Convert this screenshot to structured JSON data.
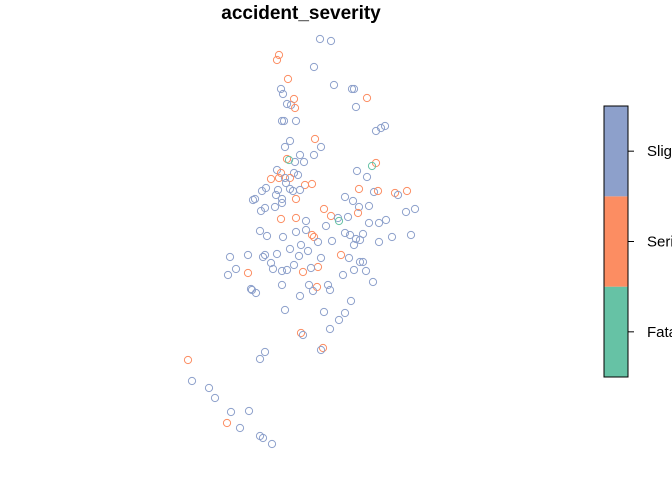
{
  "chart_data": {
    "type": "scatter",
    "title": "accident_severity",
    "legend": {
      "placement": "right",
      "categories": [
        {
          "label": "Fatal",
          "color": "#66C2A5"
        },
        {
          "label": "Serious",
          "color": "#FC8D62"
        },
        {
          "label": "Slight",
          "color": "#8DA0CB"
        }
      ]
    },
    "points": [
      [
        320,
        39,
        2
      ],
      [
        331,
        41,
        2
      ],
      [
        279,
        55,
        1
      ],
      [
        277,
        60,
        1
      ],
      [
        314,
        67,
        2
      ],
      [
        288,
        79,
        1
      ],
      [
        334,
        85,
        2
      ],
      [
        281,
        89,
        2
      ],
      [
        283,
        94,
        2
      ],
      [
        352,
        89,
        2
      ],
      [
        354,
        89,
        2
      ],
      [
        367,
        98,
        1
      ],
      [
        356,
        107,
        2
      ],
      [
        287,
        104,
        2
      ],
      [
        291,
        105,
        2
      ],
      [
        294,
        99,
        1
      ],
      [
        295,
        108,
        1
      ],
      [
        282,
        121,
        2
      ],
      [
        284,
        121,
        2
      ],
      [
        296,
        121,
        2
      ],
      [
        385,
        126,
        2
      ],
      [
        381,
        128,
        2
      ],
      [
        376,
        131,
        2
      ],
      [
        315,
        139,
        1
      ],
      [
        290,
        141,
        2
      ],
      [
        285,
        147,
        2
      ],
      [
        321,
        147,
        2
      ],
      [
        300,
        155,
        2
      ],
      [
        287,
        159,
        1
      ],
      [
        295,
        162,
        2
      ],
      [
        314,
        155,
        2
      ],
      [
        304,
        162,
        2
      ],
      [
        376,
        163,
        1
      ],
      [
        372,
        166,
        0
      ],
      [
        289,
        160,
        0
      ],
      [
        277,
        170,
        2
      ],
      [
        281,
        173,
        1
      ],
      [
        294,
        173,
        2
      ],
      [
        357,
        171,
        2
      ],
      [
        367,
        177,
        2
      ],
      [
        271,
        179,
        1
      ],
      [
        279,
        178,
        1
      ],
      [
        290,
        178,
        1
      ],
      [
        298,
        175,
        2
      ],
      [
        285,
        178,
        2
      ],
      [
        286,
        183,
        2
      ],
      [
        305,
        185,
        1
      ],
      [
        300,
        190,
        2
      ],
      [
        312,
        184,
        1
      ],
      [
        290,
        189,
        2
      ],
      [
        293,
        191,
        2
      ],
      [
        266,
        188,
        2
      ],
      [
        278,
        190,
        2
      ],
      [
        262,
        191,
        2
      ],
      [
        359,
        189,
        1
      ],
      [
        374,
        192,
        2
      ],
      [
        378,
        191,
        1
      ],
      [
        395,
        193,
        1
      ],
      [
        398,
        195,
        2
      ],
      [
        407,
        191,
        1
      ],
      [
        253,
        200,
        2
      ],
      [
        255,
        199,
        2
      ],
      [
        276,
        195,
        2
      ],
      [
        282,
        199,
        2
      ],
      [
        275,
        207,
        2
      ],
      [
        265,
        208,
        2
      ],
      [
        261,
        211,
        2
      ],
      [
        282,
        203,
        2
      ],
      [
        296,
        199,
        1
      ],
      [
        345,
        197,
        2
      ],
      [
        359,
        207,
        2
      ],
      [
        369,
        206,
        2
      ],
      [
        353,
        201,
        2
      ],
      [
        415,
        209,
        2
      ],
      [
        406,
        212,
        2
      ],
      [
        386,
        220,
        2
      ],
      [
        379,
        223,
        2
      ],
      [
        369,
        223,
        2
      ],
      [
        324,
        209,
        1
      ],
      [
        331,
        216,
        1
      ],
      [
        338,
        218,
        2
      ],
      [
        339,
        221,
        0
      ],
      [
        326,
        226,
        2
      ],
      [
        348,
        217,
        2
      ],
      [
        358,
        213,
        1
      ],
      [
        281,
        219,
        1
      ],
      [
        296,
        218,
        1
      ],
      [
        306,
        221,
        2
      ],
      [
        306,
        230,
        2
      ],
      [
        312,
        235,
        1
      ],
      [
        314,
        237,
        1
      ],
      [
        318,
        242,
        2
      ],
      [
        296,
        232,
        2
      ],
      [
        283,
        237,
        2
      ],
      [
        260,
        231,
        2
      ],
      [
        267,
        236,
        2
      ],
      [
        332,
        241,
        2
      ],
      [
        345,
        233,
        2
      ],
      [
        350,
        235,
        2
      ],
      [
        356,
        239,
        2
      ],
      [
        360,
        240,
        2
      ],
      [
        363,
        234,
        2
      ],
      [
        354,
        245,
        2
      ],
      [
        379,
        242,
        2
      ],
      [
        392,
        237,
        2
      ],
      [
        411,
        235,
        2
      ],
      [
        301,
        245,
        2
      ],
      [
        290,
        249,
        2
      ],
      [
        277,
        254,
        2
      ],
      [
        263,
        257,
        2
      ],
      [
        265,
        255,
        2
      ],
      [
        230,
        257,
        2
      ],
      [
        248,
        255,
        2
      ],
      [
        271,
        263,
        2
      ],
      [
        299,
        256,
        2
      ],
      [
        294,
        265,
        2
      ],
      [
        308,
        251,
        2
      ],
      [
        321,
        258,
        2
      ],
      [
        341,
        255,
        1
      ],
      [
        349,
        258,
        2
      ],
      [
        360,
        262,
        2
      ],
      [
        363,
        262,
        2
      ],
      [
        366,
        271,
        2
      ],
      [
        373,
        282,
        2
      ],
      [
        343,
        275,
        2
      ],
      [
        354,
        270,
        2
      ],
      [
        318,
        267,
        1
      ],
      [
        311,
        268,
        2
      ],
      [
        303,
        272,
        1
      ],
      [
        287,
        270,
        2
      ],
      [
        282,
        271,
        2
      ],
      [
        273,
        269,
        2
      ],
      [
        248,
        273,
        1
      ],
      [
        236,
        269,
        2
      ],
      [
        228,
        275,
        2
      ],
      [
        328,
        285,
        2
      ],
      [
        330,
        290,
        2
      ],
      [
        317,
        287,
        1
      ],
      [
        313,
        291,
        2
      ],
      [
        309,
        285,
        2
      ],
      [
        282,
        285,
        2
      ],
      [
        251,
        289,
        2
      ],
      [
        252,
        290,
        2
      ],
      [
        256,
        293,
        2
      ],
      [
        300,
        296,
        2
      ],
      [
        351,
        301,
        2
      ],
      [
        324,
        312,
        2
      ],
      [
        345,
        313,
        2
      ],
      [
        339,
        320,
        2
      ],
      [
        285,
        310,
        2
      ],
      [
        301,
        333,
        1
      ],
      [
        303,
        335,
        2
      ],
      [
        330,
        329,
        2
      ],
      [
        323,
        348,
        1
      ],
      [
        321,
        350,
        2
      ],
      [
        265,
        352,
        2
      ],
      [
        260,
        359,
        2
      ],
      [
        188,
        360,
        1
      ],
      [
        192,
        381,
        2
      ],
      [
        209,
        388,
        2
      ],
      [
        215,
        398,
        2
      ],
      [
        231,
        412,
        2
      ],
      [
        249,
        411,
        2
      ],
      [
        227,
        423,
        1
      ],
      [
        240,
        428,
        2
      ],
      [
        260,
        436,
        2
      ],
      [
        263,
        438,
        2
      ],
      [
        272,
        444,
        2
      ]
    ]
  }
}
